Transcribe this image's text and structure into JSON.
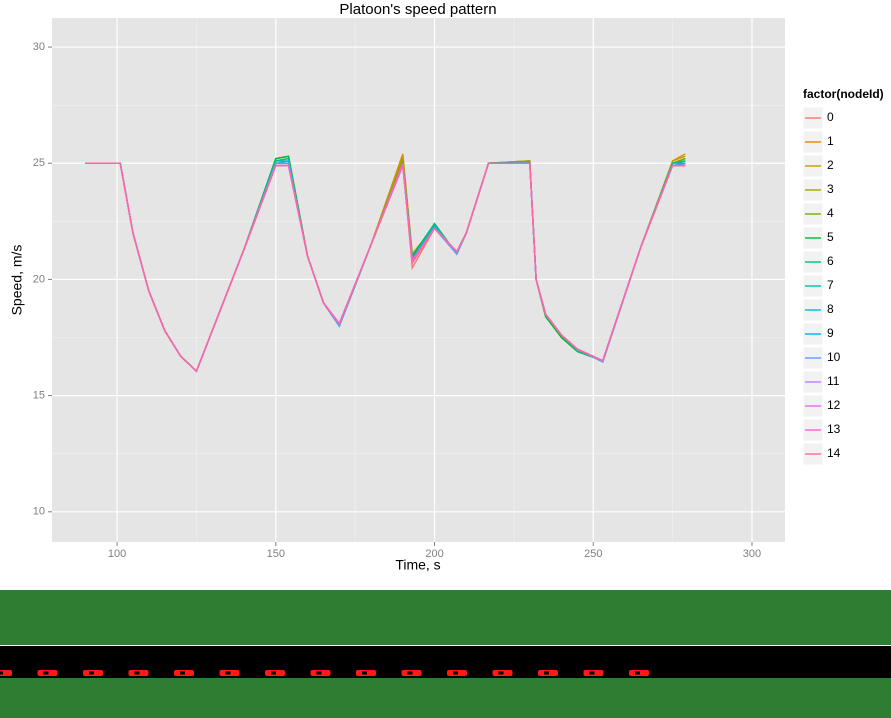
{
  "chart_data": {
    "type": "line",
    "title": "Platoon's speed pattern",
    "x_label": "Time, s",
    "y_label": "Speed, m/s",
    "legend_title": "factor(nodeId)",
    "legend_position": "right",
    "grid": true,
    "xlim": [
      79.5,
      310.4
    ],
    "ylim": [
      8.7,
      31.25
    ],
    "xticks": [
      100,
      150,
      200,
      250,
      300
    ],
    "yticks": [
      10,
      15,
      20,
      25,
      30
    ],
    "x": [
      90,
      101,
      105,
      110,
      115,
      120,
      125,
      130,
      140,
      150,
      154,
      160,
      165,
      170,
      180,
      190,
      193,
      200,
      207,
      210,
      217,
      230,
      232,
      235,
      240,
      245,
      253,
      265,
      275,
      279
    ],
    "series": [
      {
        "name": "0",
        "color": "#F8766D",
        "values": [
          25,
          25,
          22,
          19.5,
          17.8,
          16.7,
          16.05,
          17.8,
          21.3,
          24.9,
          24.9,
          21,
          19,
          18,
          21.5,
          25.0,
          20.5,
          22.2,
          21.1,
          22,
          25,
          25.05,
          20,
          18.5,
          17.6,
          17.0,
          16.5,
          21.4,
          24.9,
          25.0
        ]
      },
      {
        "name": "1",
        "color": "#E58700",
        "values": [
          25,
          25,
          22,
          19.5,
          17.8,
          16.7,
          16.05,
          17.8,
          21.3,
          25.1,
          25.2,
          21,
          19,
          18,
          21.5,
          25.4,
          21.1,
          22.3,
          21.1,
          22,
          25,
          25.1,
          20,
          18.5,
          17.6,
          17.0,
          16.5,
          21.4,
          25.1,
          25.4
        ]
      },
      {
        "name": "2",
        "color": "#C99800",
        "values": [
          25,
          25,
          22,
          19.5,
          17.8,
          16.7,
          16.05,
          17.8,
          21.3,
          25.2,
          25.3,
          21,
          19,
          18,
          21.5,
          25.3,
          21.0,
          22.3,
          21.1,
          22,
          25,
          25.1,
          20,
          18.5,
          17.6,
          17.0,
          16.5,
          21.4,
          25.1,
          25.3
        ]
      },
      {
        "name": "3",
        "color": "#A3A500",
        "values": [
          25,
          25,
          22,
          19.5,
          17.8,
          16.7,
          16.05,
          17.8,
          21.3,
          25.2,
          25.3,
          21,
          19,
          18,
          21.5,
          25.2,
          21.0,
          22.4,
          21.1,
          22,
          25,
          25.1,
          20,
          18.4,
          17.5,
          16.9,
          16.5,
          21.4,
          25.0,
          25.2
        ]
      },
      {
        "name": "4",
        "color": "#6BB100",
        "values": [
          25,
          25,
          22,
          19.5,
          17.8,
          16.7,
          16.05,
          17.8,
          21.3,
          25.2,
          25.3,
          21,
          19,
          18,
          21.5,
          25.1,
          21.0,
          22.4,
          21.1,
          22,
          25,
          25.05,
          20,
          18.4,
          17.5,
          16.9,
          16.5,
          21.4,
          25.0,
          25.2
        ]
      },
      {
        "name": "5",
        "color": "#00BA38",
        "values": [
          25,
          25,
          22,
          19.5,
          17.8,
          16.7,
          16.05,
          17.8,
          21.3,
          25.2,
          25.3,
          21,
          19,
          18,
          21.5,
          25.0,
          21.0,
          22.4,
          21.1,
          22,
          25,
          25.05,
          20,
          18.4,
          17.5,
          16.9,
          16.5,
          21.4,
          25.0,
          25.1
        ]
      },
      {
        "name": "6",
        "color": "#00BF7D",
        "values": [
          25,
          25,
          22,
          19.5,
          17.8,
          16.7,
          16.05,
          17.8,
          21.3,
          25.1,
          25.2,
          21,
          19,
          18,
          21.5,
          25.0,
          20.9,
          22.4,
          21.1,
          22,
          25,
          25.05,
          20,
          18.5,
          17.6,
          16.9,
          16.5,
          21.4,
          25.0,
          25.1
        ]
      },
      {
        "name": "7",
        "color": "#00C0AF",
        "values": [
          25,
          25,
          22,
          19.5,
          17.8,
          16.7,
          16.05,
          17.8,
          21.3,
          25.1,
          25.1,
          21,
          19,
          18,
          21.5,
          25.0,
          20.9,
          22.3,
          21.1,
          22,
          25,
          25.05,
          20,
          18.5,
          17.6,
          17.0,
          16.5,
          21.4,
          25.0,
          25.0
        ]
      },
      {
        "name": "8",
        "color": "#00BCD8",
        "values": [
          25,
          25,
          22,
          19.5,
          17.8,
          16.7,
          16.05,
          17.8,
          21.3,
          25.0,
          25.1,
          21,
          19,
          18,
          21.5,
          24.9,
          20.9,
          22.3,
          21.1,
          22,
          25,
          25.0,
          20,
          18.5,
          17.6,
          17.0,
          16.45,
          21.4,
          24.9,
          25.0
        ]
      },
      {
        "name": "9",
        "color": "#00B0F6",
        "values": [
          25,
          25,
          22,
          19.5,
          17.8,
          16.7,
          16.05,
          17.8,
          21.3,
          25.0,
          25.0,
          21,
          19,
          18,
          21.5,
          24.9,
          20.8,
          22.2,
          21.1,
          22,
          25,
          25.0,
          20,
          18.5,
          17.6,
          17.0,
          16.45,
          21.4,
          24.9,
          25.0
        ]
      },
      {
        "name": "10",
        "color": "#619CFF",
        "values": [
          25,
          25,
          22,
          19.5,
          17.8,
          16.7,
          16.05,
          17.8,
          21.3,
          25.0,
          25.0,
          21,
          19,
          18,
          21.5,
          24.9,
          20.8,
          22.2,
          21.1,
          22,
          25,
          25.0,
          20,
          18.5,
          17.6,
          17.0,
          16.45,
          21.4,
          24.9,
          24.9
        ]
      },
      {
        "name": "11",
        "color": "#B983FF",
        "values": [
          25,
          25,
          22,
          19.5,
          17.8,
          16.7,
          16.05,
          17.8,
          21.3,
          24.9,
          24.9,
          21,
          19,
          18.1,
          21.5,
          24.9,
          20.8,
          22.2,
          21.2,
          22,
          25,
          25.0,
          20,
          18.5,
          17.6,
          17.0,
          16.5,
          21.4,
          24.9,
          24.9
        ]
      },
      {
        "name": "12",
        "color": "#E76BF3",
        "values": [
          25,
          25,
          22,
          19.5,
          17.8,
          16.7,
          16.05,
          17.8,
          21.3,
          24.9,
          24.9,
          21,
          19,
          18.1,
          21.5,
          24.9,
          20.8,
          22.2,
          21.2,
          22,
          25,
          25.0,
          20,
          18.5,
          17.6,
          17.0,
          16.5,
          21.4,
          24.9,
          24.9
        ]
      },
      {
        "name": "13",
        "color": "#FD61D1",
        "values": [
          25,
          25,
          22,
          19.5,
          17.8,
          16.7,
          16.05,
          17.8,
          21.3,
          24.9,
          24.9,
          21,
          19,
          18.1,
          21.5,
          24.9,
          20.8,
          22.2,
          21.2,
          22,
          25,
          25.0,
          20,
          18.5,
          17.6,
          17.0,
          16.5,
          21.4,
          24.9,
          24.9
        ]
      },
      {
        "name": "14",
        "color": "#FF67A4",
        "values": [
          25,
          25,
          22,
          19.5,
          17.8,
          16.7,
          16.05,
          17.8,
          21.3,
          24.9,
          24.9,
          21,
          19,
          18.1,
          21.5,
          25.0,
          20.7,
          22.2,
          21.2,
          22,
          25,
          25.0,
          20,
          18.5,
          17.6,
          17.0,
          16.5,
          21.4,
          24.9,
          24.9
        ]
      }
    ]
  }
}
